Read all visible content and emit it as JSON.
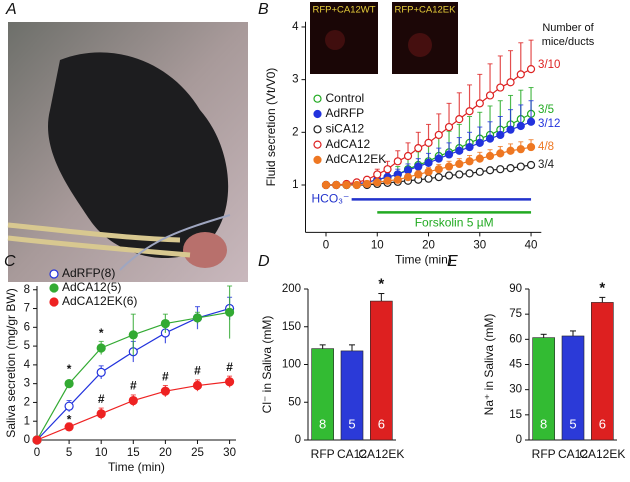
{
  "photo": {
    "panel": "A"
  },
  "chart_data": [
    {
      "type": "line",
      "panel": "B",
      "xlabel": "Time (min)",
      "ylabel": "Fluid secretion (Vt/V0)",
      "xlim": [
        -4,
        42
      ],
      "ylim": [
        0.1,
        4.1
      ],
      "xticks": [
        0,
        10,
        20,
        30,
        40
      ],
      "yticks": [
        1,
        2,
        3,
        4
      ],
      "legend": "center left",
      "error_bars": "upper",
      "insets": [
        "RFP+CA12WT",
        "RFP+CA12EK"
      ],
      "end_label_title": [
        "Number of",
        "mice/ducts"
      ],
      "periods": [
        {
          "label": "HCO₃⁻",
          "start": 5,
          "end": 40,
          "color": "#2233cc"
        },
        {
          "label": "Forskolin 5 µM",
          "start": 10,
          "end": 40,
          "color": "#22aa22"
        }
      ],
      "x": [
        0,
        2,
        4,
        6,
        8,
        10,
        12,
        14,
        16,
        18,
        20,
        22,
        24,
        26,
        28,
        30,
        32,
        34,
        36,
        38,
        40
      ],
      "series": [
        {
          "name": "Control",
          "color": "#22aa22",
          "marker": "open",
          "end_label": "3/5",
          "values": [
            1.0,
            1.0,
            1.0,
            1.02,
            1.05,
            1.1,
            1.15,
            1.2,
            1.3,
            1.38,
            1.45,
            1.55,
            1.62,
            1.7,
            1.8,
            1.88,
            1.95,
            2.05,
            2.15,
            2.25,
            2.35
          ],
          "errors": [
            0,
            0,
            0,
            0,
            0.05,
            0.08,
            0.1,
            0.15,
            0.2,
            0.25,
            0.3,
            0.35,
            0.4,
            0.45,
            0.5,
            0.5,
            0.55,
            0.55,
            0.55,
            0.55,
            0.5
          ]
        },
        {
          "name": "AdRFP",
          "color": "#2233dd",
          "marker": "filled",
          "end_label": "3/12",
          "values": [
            1.0,
            1.0,
            1.0,
            1.02,
            1.05,
            1.1,
            1.15,
            1.2,
            1.28,
            1.35,
            1.42,
            1.5,
            1.58,
            1.65,
            1.72,
            1.8,
            1.88,
            1.95,
            2.05,
            2.12,
            2.2
          ],
          "errors": [
            0,
            0,
            0,
            0,
            0.03,
            0.05,
            0.08,
            0.1,
            0.12,
            0.15,
            0.18,
            0.2,
            0.22,
            0.25,
            0.28,
            0.3,
            0.32,
            0.35,
            0.38,
            0.4,
            0.4
          ]
        },
        {
          "name": "siCA12",
          "color": "#222222",
          "marker": "open",
          "end_label": "3/4",
          "values": [
            1.0,
            1.0,
            1.0,
            1.0,
            1.0,
            1.02,
            1.04,
            1.06,
            1.08,
            1.1,
            1.12,
            1.15,
            1.18,
            1.2,
            1.22,
            1.25,
            1.28,
            1.3,
            1.32,
            1.35,
            1.38
          ]
        },
        {
          "name": "AdCA12",
          "color": "#dd2222",
          "marker": "open",
          "end_label": "3/10",
          "values": [
            1.0,
            1.0,
            1.02,
            1.05,
            1.1,
            1.2,
            1.3,
            1.45,
            1.55,
            1.7,
            1.8,
            1.95,
            2.1,
            2.25,
            2.4,
            2.55,
            2.7,
            2.85,
            2.95,
            3.1,
            3.2
          ],
          "errors": [
            0,
            0,
            0,
            0,
            0.05,
            0.1,
            0.15,
            0.2,
            0.25,
            0.3,
            0.35,
            0.4,
            0.45,
            0.5,
            0.5,
            0.55,
            0.6,
            0.6,
            0.6,
            0.6,
            0.55
          ]
        },
        {
          "name": "AdCA12EK",
          "color": "#ee7722",
          "marker": "filled",
          "end_label": "4/8",
          "values": [
            1.0,
            1.0,
            1.0,
            1.0,
            1.02,
            1.05,
            1.08,
            1.1,
            1.15,
            1.2,
            1.25,
            1.3,
            1.35,
            1.4,
            1.45,
            1.5,
            1.55,
            1.6,
            1.65,
            1.68,
            1.72
          ],
          "errors": [
            0,
            0,
            0,
            0,
            0.02,
            0.03,
            0.04,
            0.05,
            0.06,
            0.07,
            0.08,
            0.09,
            0.1,
            0.1,
            0.11,
            0.12,
            0.12,
            0.13,
            0.13,
            0.14,
            0.14
          ]
        }
      ]
    },
    {
      "type": "line",
      "panel": "C",
      "xlabel": "Time (min)",
      "ylabel": "Saliva secretion (mg/gr BW)",
      "xlim": [
        0,
        31
      ],
      "ylim": [
        0,
        8.2
      ],
      "xticks": [
        0,
        5,
        10,
        15,
        20,
        25,
        30
      ],
      "yticks": [
        0,
        1,
        2,
        3,
        4,
        5,
        6,
        7,
        8
      ],
      "legend": "upper left",
      "error_bars": "both",
      "x": [
        0,
        5,
        10,
        15,
        20,
        25,
        30
      ],
      "series": [
        {
          "name": "AdRFP(8)",
          "color": "#2233dd",
          "marker": "open",
          "values": [
            0,
            1.8,
            3.6,
            4.7,
            5.7,
            6.5,
            7.0
          ],
          "errors": [
            0,
            0.3,
            0.35,
            0.55,
            0.55,
            0.6,
            0.6
          ]
        },
        {
          "name": "AdCA12(5)",
          "color": "#33aa33",
          "marker": "filled",
          "values": [
            0,
            3.0,
            4.9,
            5.6,
            6.2,
            6.5,
            6.8
          ],
          "errors": [
            0,
            0.15,
            0.35,
            1.1,
            0.5,
            0.3,
            1.4
          ]
        },
        {
          "name": "AdCA12EK(6)",
          "color": "#ee2222",
          "marker": "filled",
          "values": [
            0,
            0.7,
            1.4,
            2.1,
            2.6,
            2.9,
            3.1
          ],
          "errors": [
            0,
            0.2,
            0.3,
            0.3,
            0.3,
            0.3,
            0.3
          ]
        }
      ],
      "annotations": [
        {
          "text": "*",
          "x": 5,
          "series": 1,
          "side": "above"
        },
        {
          "text": "*",
          "x": 5,
          "series": 0,
          "side": "below"
        },
        {
          "text": "*",
          "x": 10,
          "series": 1,
          "side": "above"
        },
        {
          "text": "#",
          "x": 10,
          "series": 2,
          "side": "above"
        },
        {
          "text": "#",
          "x": 15,
          "series": 2,
          "side": "above"
        },
        {
          "text": "#",
          "x": 20,
          "series": 2,
          "side": "above"
        },
        {
          "text": "#",
          "x": 25,
          "series": 2,
          "side": "above"
        },
        {
          "text": "#",
          "x": 30,
          "series": 2,
          "side": "above"
        }
      ]
    },
    {
      "type": "bar",
      "panel": "D",
      "ylabel": "Cl⁻ in Saliva (mM)",
      "categories": [
        "RFP",
        "CA12",
        "CA12EK"
      ],
      "values": [
        121,
        118,
        184
      ],
      "errors": [
        5,
        8,
        10
      ],
      "n": [
        8,
        5,
        6
      ],
      "colors": [
        "#33bb33",
        "#2b3ad8",
        "#dd2020"
      ],
      "ylim": [
        0,
        200
      ],
      "yticks": [
        0,
        50,
        100,
        150,
        200
      ],
      "annotations": [
        {
          "text": "*",
          "category": 2
        }
      ]
    },
    {
      "type": "bar",
      "panel": "E",
      "ylabel": "Na⁺ in Saliva (mM)",
      "categories": [
        "RFP",
        "CA12",
        "CA12EK"
      ],
      "values": [
        61,
        62,
        82
      ],
      "errors": [
        2,
        3,
        3
      ],
      "n": [
        8,
        5,
        6
      ],
      "colors": [
        "#33bb33",
        "#2b3ad8",
        "#dd2020"
      ],
      "ylim": [
        0,
        90
      ],
      "yticks": [
        0,
        15,
        30,
        45,
        60,
        75,
        90
      ],
      "annotations": [
        {
          "text": "*",
          "category": 2
        }
      ]
    }
  ]
}
